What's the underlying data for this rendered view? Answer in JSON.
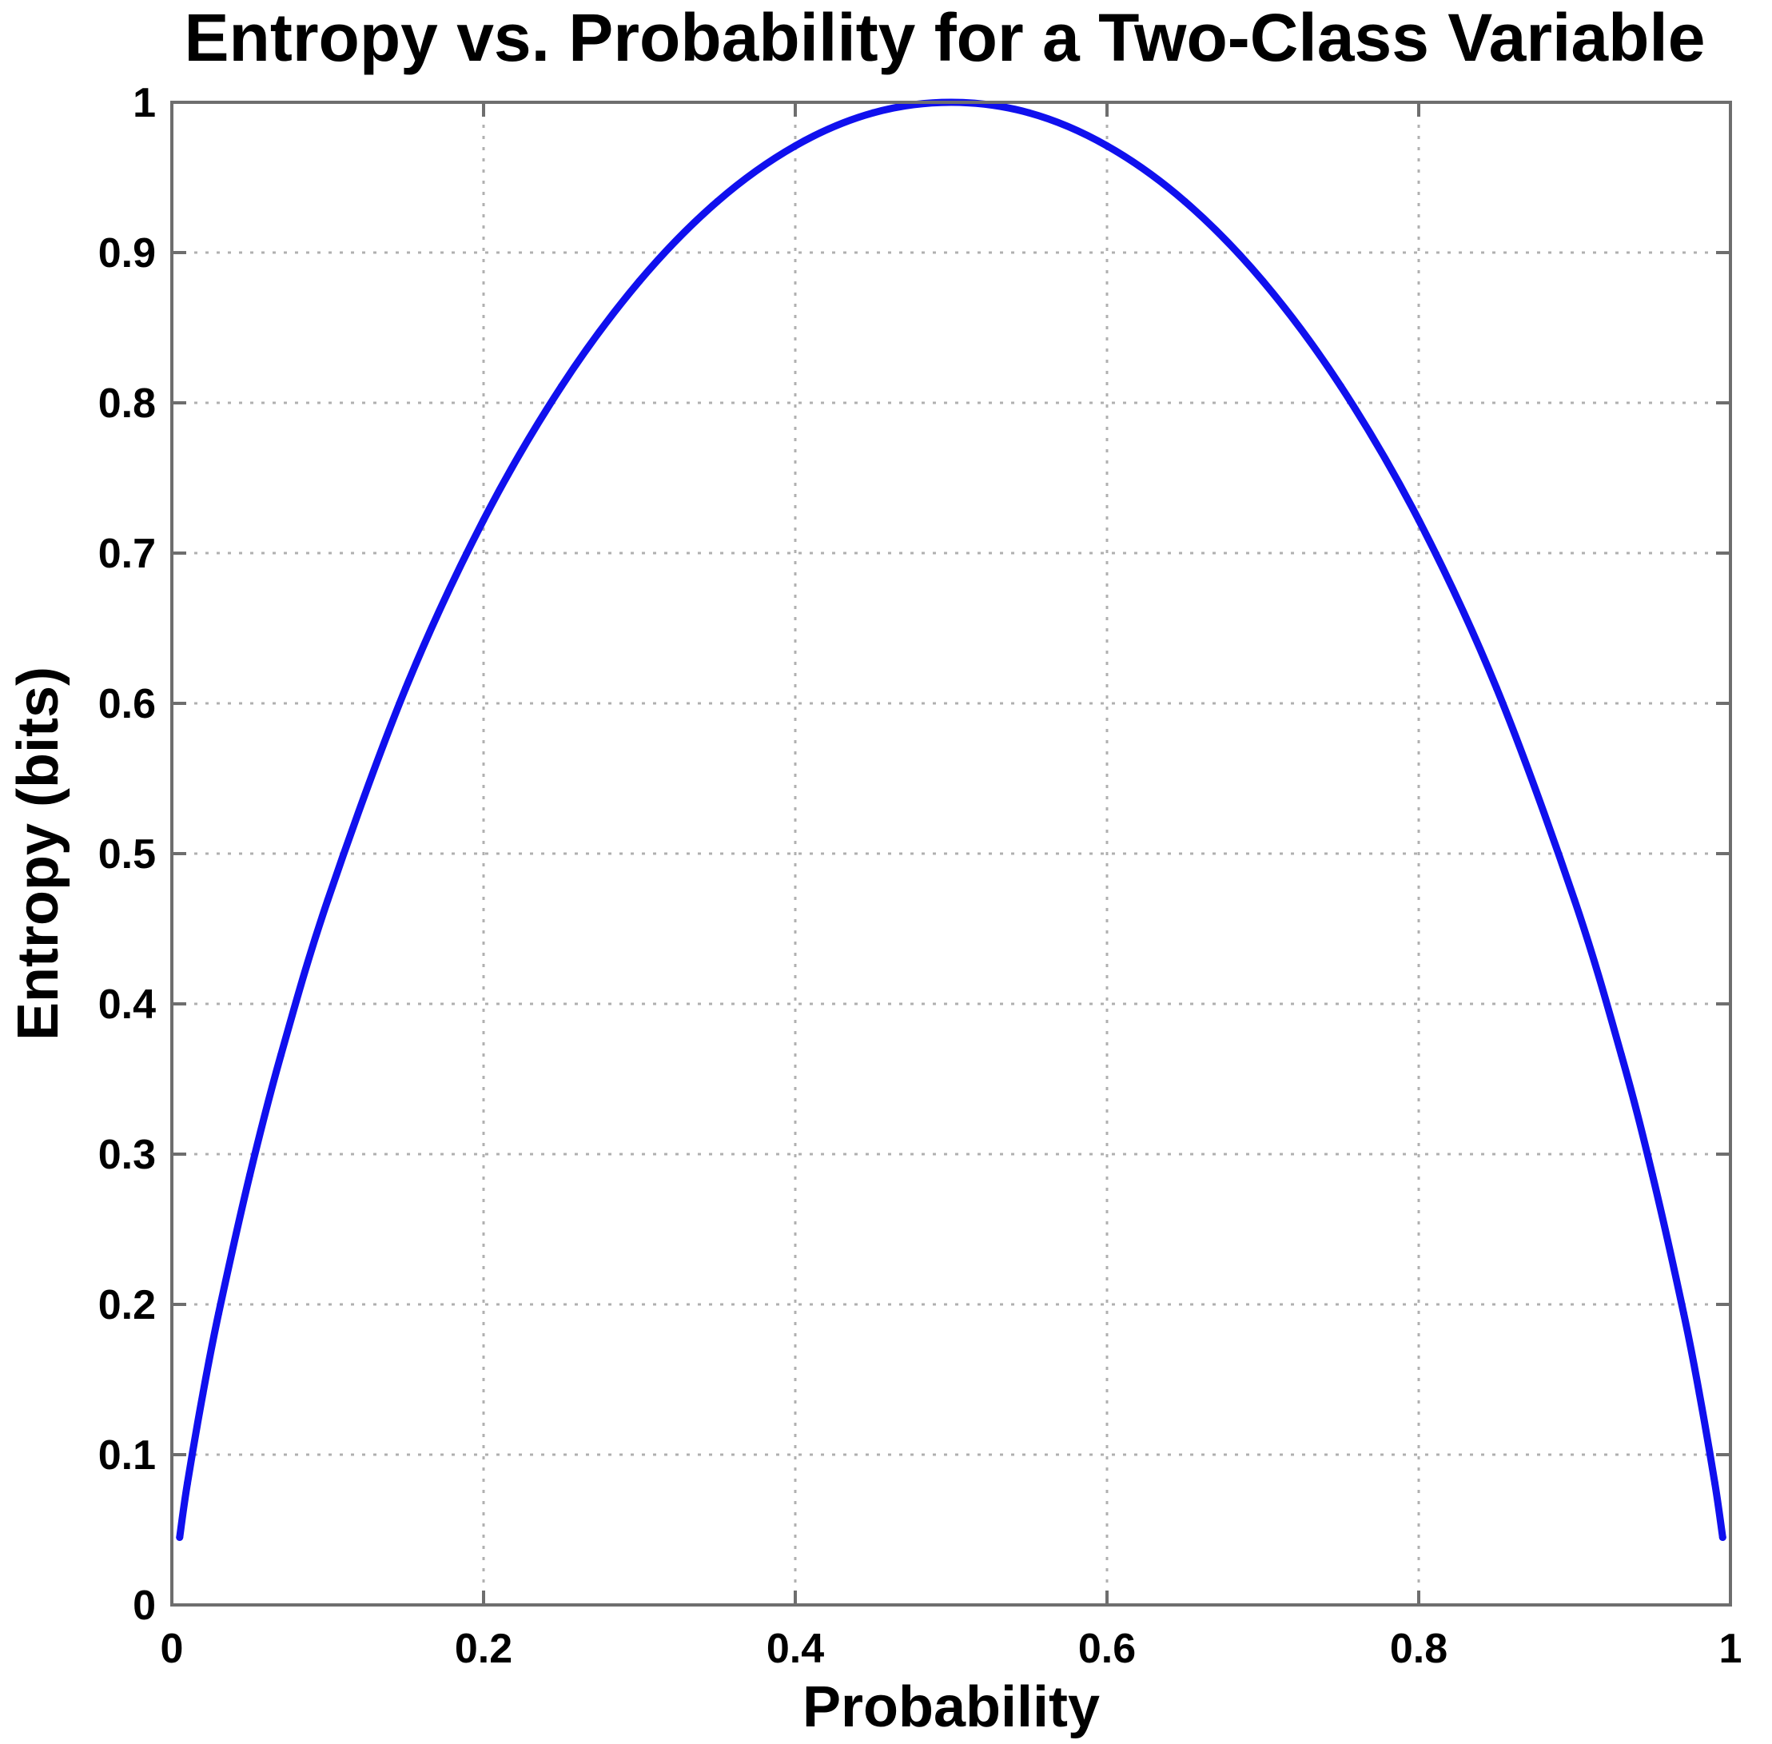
{
  "chart_data": {
    "type": "line",
    "title": "Entropy vs. Probability for a Two-Class Variable",
    "xlabel": "Probability",
    "ylabel": "Entropy (bits)",
    "xlim": [
      0,
      1
    ],
    "ylim": [
      0,
      1
    ],
    "grid": true,
    "grid_style": "dotted",
    "xticks": [
      0,
      0.2,
      0.4,
      0.6,
      0.8,
      1
    ],
    "xtick_labels": [
      "0",
      "0.2",
      "0.4",
      "0.6",
      "0.8",
      "1"
    ],
    "yticks": [
      0,
      0.1,
      0.2,
      0.3,
      0.4,
      0.5,
      0.6,
      0.7,
      0.8,
      0.9,
      1
    ],
    "ytick_labels": [
      "0",
      "0.1",
      "0.2",
      "0.3",
      "0.4",
      "0.5",
      "0.6",
      "0.7",
      "0.8",
      "0.9",
      "1"
    ],
    "series": [
      {
        "color": "#1010ee",
        "x": [
          0.005,
          0.01,
          0.02,
          0.03,
          0.05,
          0.07,
          0.1,
          0.15,
          0.2,
          0.25,
          0.3,
          0.35,
          0.4,
          0.45,
          0.5,
          0.55,
          0.6,
          0.65,
          0.7,
          0.75,
          0.8,
          0.85,
          0.9,
          0.93,
          0.95,
          0.97,
          0.98,
          0.99,
          0.995
        ],
        "y": [
          0.045,
          0.081,
          0.141,
          0.194,
          0.286,
          0.366,
          0.469,
          0.61,
          0.722,
          0.811,
          0.881,
          0.934,
          0.971,
          0.993,
          1.0,
          0.993,
          0.971,
          0.934,
          0.881,
          0.811,
          0.722,
          0.61,
          0.469,
          0.366,
          0.286,
          0.194,
          0.141,
          0.081,
          0.045
        ]
      }
    ]
  }
}
